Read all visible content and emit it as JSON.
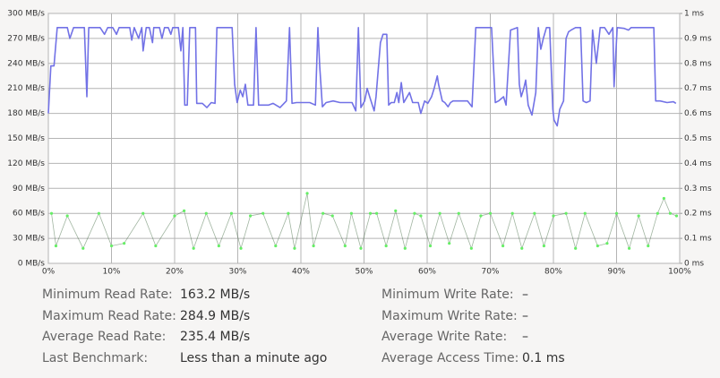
{
  "chart_data": {
    "type": "line",
    "xlim": [
      0,
      100
    ],
    "xticks": [
      {
        "value": 0,
        "label": "0%"
      },
      {
        "value": 10,
        "label": "10%"
      },
      {
        "value": 20,
        "label": "20%"
      },
      {
        "value": 30,
        "label": "30%"
      },
      {
        "value": 40,
        "label": "40%"
      },
      {
        "value": 50,
        "label": "50%"
      },
      {
        "value": 60,
        "label": "60%"
      },
      {
        "value": 70,
        "label": "70%"
      },
      {
        "value": 80,
        "label": "80%"
      },
      {
        "value": 90,
        "label": "90%"
      },
      {
        "value": 100,
        "label": "100%"
      }
    ],
    "ylim": [
      0,
      300
    ],
    "yticks": [
      {
        "value": 0,
        "label": "0 MB/s"
      },
      {
        "value": 30,
        "label": "30 MB/s"
      },
      {
        "value": 60,
        "label": "60 MB/s"
      },
      {
        "value": 90,
        "label": "90 MB/s"
      },
      {
        "value": 120,
        "label": "120 MB/s"
      },
      {
        "value": 150,
        "label": "150 MB/s"
      },
      {
        "value": 180,
        "label": "180 MB/s"
      },
      {
        "value": 210,
        "label": "210 MB/s"
      },
      {
        "value": 240,
        "label": "240 MB/s"
      },
      {
        "value": 270,
        "label": "270 MB/s"
      },
      {
        "value": 300,
        "label": "300 MB/s"
      }
    ],
    "y2lim": [
      0,
      1
    ],
    "y2ticks": [
      {
        "value": 0,
        "label": "0 ms"
      },
      {
        "value": 0.1,
        "label": "0.1 ms"
      },
      {
        "value": 0.2,
        "label": "0.2 ms"
      },
      {
        "value": 0.3,
        "label": "0.3 ms"
      },
      {
        "value": 0.4,
        "label": "0.4 ms"
      },
      {
        "value": 0.5,
        "label": "0.5 ms"
      },
      {
        "value": 0.6,
        "label": "0.6 ms"
      },
      {
        "value": 0.7,
        "label": "0.7 ms"
      },
      {
        "value": 0.8,
        "label": "0.8 ms"
      },
      {
        "value": 0.9,
        "label": "0.9 ms"
      },
      {
        "value": 1,
        "label": "1 ms"
      }
    ],
    "grid": true,
    "series": [
      {
        "type": "line",
        "color": "#7272e6",
        "x": [
          0,
          0.4,
          0.9,
          1.4,
          3.0,
          3.4,
          4.0,
          5.7,
          6.1,
          6.4,
          8.2,
          8.9,
          9.4,
          10.2,
          10.8,
          11.2,
          12.9,
          13.2,
          13.6,
          14.3,
          14.8,
          15.0,
          15.5,
          16.0,
          16.5,
          16.7,
          17.6,
          18.0,
          18.4,
          19.0,
          19.4,
          19.7,
          20.6,
          21.0,
          21.3,
          21.6,
          22.0,
          22.4,
          23.3,
          23.5,
          24.4,
          25.1,
          25.8,
          26.4,
          26.7,
          29.1,
          29.5,
          29.9,
          30.4,
          30.8,
          31.2,
          31.6,
          32.5,
          32.9,
          33.3,
          34.9,
          35.6,
          36.7,
          37.7,
          38.2,
          38.6,
          39.3,
          41.4,
          42.3,
          42.7,
          43.0,
          43.4,
          44.0,
          45.1,
          46.2,
          48.1,
          48.7,
          49.1,
          49.5,
          50.1,
          50.5,
          50.9,
          51.6,
          51.9,
          52.6,
          53.0,
          53.6,
          53.9,
          54.3,
          54.8,
          55.2,
          55.5,
          55.9,
          56.3,
          57.2,
          57.7,
          58.2,
          58.6,
          59.0,
          59.6,
          60.1,
          60.7,
          61.1,
          61.6,
          61.8,
          62.4,
          62.8,
          63.3,
          63.7,
          64.1,
          66.4,
          67.1,
          67.7,
          69.6,
          70.2,
          70.8,
          71.3,
          72.1,
          72.5,
          73.2,
          74.3,
          74.6,
          74.9,
          75.3,
          75.6,
          76.0,
          76.6,
          77.2,
          77.6,
          78.0,
          78.4,
          78.9,
          79.4,
          79.9,
          80.1,
          80.6,
          81.0,
          81.6,
          82.0,
          82.4,
          82.8,
          83.5,
          84.3,
          84.7,
          85.2,
          85.8,
          86.2,
          86.8,
          87.4,
          88.1,
          88.8,
          89.4,
          89.6,
          90.1,
          91.2,
          91.9,
          92.3,
          92.9,
          93.6,
          95.9,
          96.2,
          96.9,
          98.0,
          99.0,
          99.4
        ],
        "values": [
          180,
          237,
          237,
          283,
          283,
          270,
          283,
          283,
          200,
          283,
          283,
          275,
          283,
          283,
          275,
          283,
          283,
          268,
          283,
          270,
          283,
          255,
          283,
          283,
          265,
          283,
          283,
          270,
          283,
          283,
          275,
          283,
          283,
          255,
          283,
          190,
          190,
          283,
          283,
          192,
          192,
          187,
          193,
          192,
          283,
          283,
          215,
          193,
          208,
          200,
          215,
          190,
          190,
          283,
          190,
          190,
          192,
          187,
          195,
          283,
          192,
          193,
          193,
          190,
          283,
          235,
          188,
          193,
          195,
          193,
          193,
          183,
          283,
          187,
          195,
          210,
          200,
          183,
          200,
          265,
          275,
          275,
          190,
          193,
          193,
          205,
          193,
          217,
          193,
          205,
          193,
          193,
          193,
          180,
          195,
          192,
          200,
          210,
          225,
          215,
          195,
          193,
          188,
          193,
          195,
          195,
          188,
          283,
          283,
          283,
          193,
          195,
          200,
          190,
          280,
          283,
          215,
          200,
          210,
          220,
          190,
          178,
          205,
          283,
          257,
          270,
          283,
          283,
          185,
          172,
          165,
          185,
          195,
          270,
          278,
          280,
          283,
          283,
          195,
          193,
          195,
          280,
          240,
          283,
          283,
          275,
          283,
          212,
          283,
          282,
          280,
          283,
          283,
          283,
          283,
          195,
          195,
          193,
          194,
          192
        ]
      },
      {
        "type": "scatter",
        "axis": "y2",
        "color": "#66ee66",
        "x": [
          0.5,
          1.2,
          3,
          5.5,
          8,
          10,
          12,
          15,
          17,
          20,
          21.5,
          23,
          25,
          27,
          29,
          30.5,
          32,
          34,
          36,
          38,
          39,
          41,
          42,
          43.5,
          45,
          47,
          48,
          49.5,
          51,
          52,
          53.5,
          55,
          56.5,
          58,
          59,
          60.5,
          62,
          63.5,
          65,
          67,
          68.5,
          70,
          72,
          73.5,
          75,
          77,
          78.5,
          80,
          82,
          83.5,
          85,
          87,
          88.5,
          90,
          92,
          93.5,
          95,
          96.5,
          97.5,
          98.5,
          99.5
        ],
        "values": [
          0.2,
          0.07,
          0.19,
          0.06,
          0.2,
          0.07,
          0.08,
          0.2,
          0.07,
          0.19,
          0.21,
          0.06,
          0.2,
          0.07,
          0.2,
          0.06,
          0.19,
          0.2,
          0.07,
          0.2,
          0.06,
          0.28,
          0.07,
          0.2,
          0.19,
          0.07,
          0.2,
          0.06,
          0.2,
          0.2,
          0.07,
          0.21,
          0.06,
          0.2,
          0.19,
          0.07,
          0.2,
          0.08,
          0.2,
          0.06,
          0.19,
          0.2,
          0.07,
          0.2,
          0.06,
          0.2,
          0.07,
          0.19,
          0.2,
          0.06,
          0.2,
          0.07,
          0.08,
          0.2,
          0.06,
          0.19,
          0.07,
          0.2,
          0.26,
          0.2,
          0.19
        ]
      }
    ]
  },
  "stats": {
    "left": [
      {
        "label": "Minimum Read Rate:",
        "value": "163.2 MB/s"
      },
      {
        "label": "Maximum Read Rate:",
        "value": "284.9 MB/s"
      },
      {
        "label": "Average Read Rate:",
        "value": "235.4 MB/s"
      },
      {
        "label": "Last Benchmark:",
        "value": "Less than a minute ago"
      }
    ],
    "right": [
      {
        "label": "Minimum Write Rate:",
        "value": "–"
      },
      {
        "label": "Maximum Write Rate:",
        "value": "–"
      },
      {
        "label": "Average Write Rate:",
        "value": "–"
      },
      {
        "label": "Average Access Time:",
        "value": "0.1 ms"
      }
    ]
  }
}
